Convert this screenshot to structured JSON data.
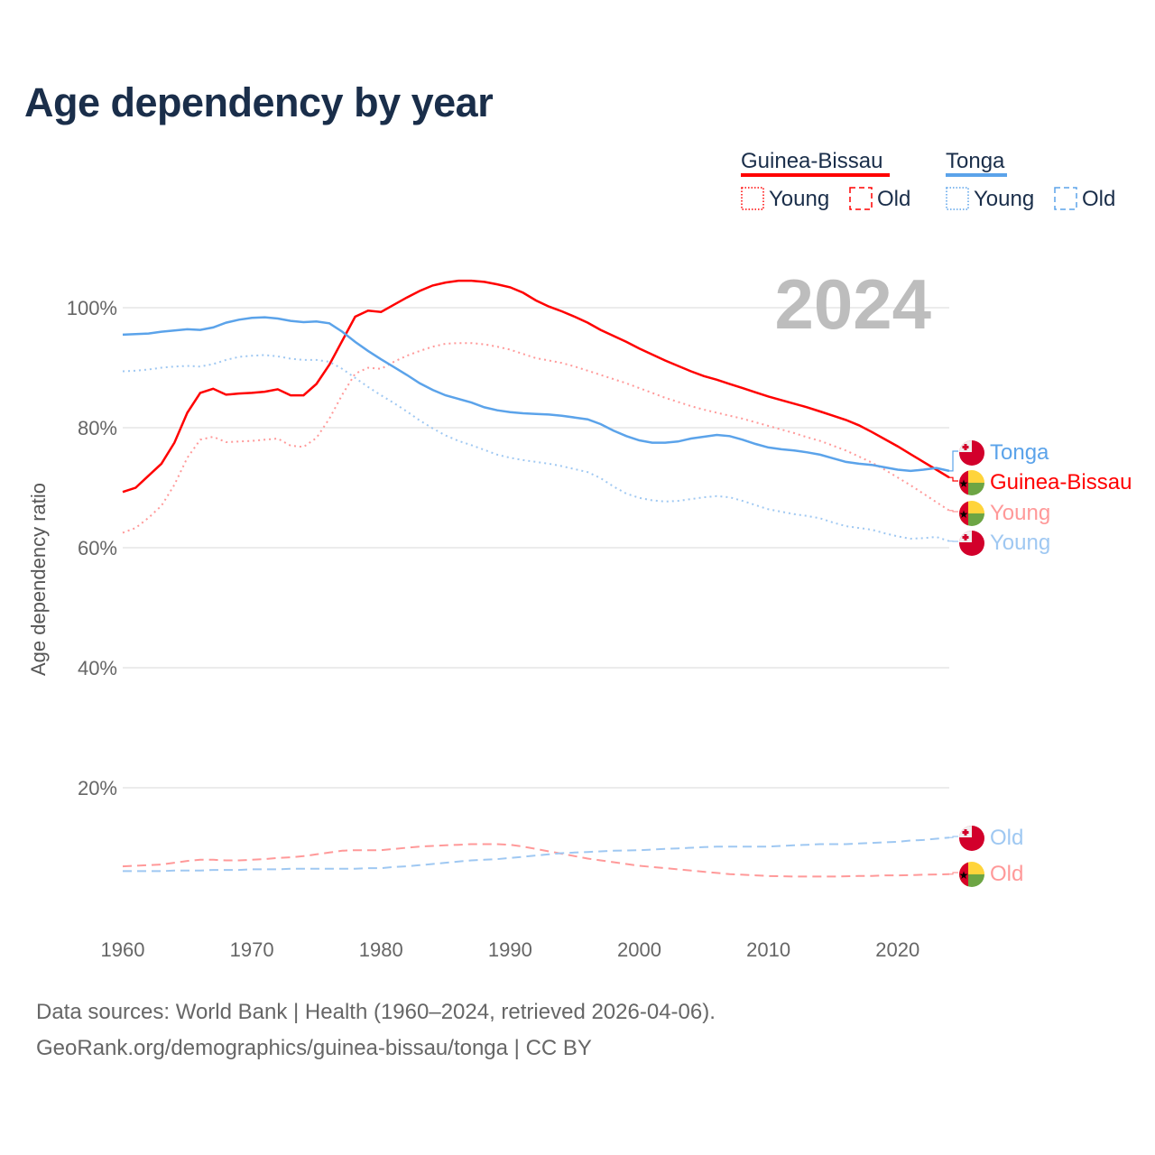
{
  "title": "Age dependency by year",
  "year_badge": "2024",
  "footer": {
    "line1": "Data sources: World Bank | Health (1960–2024, retrieved 2026-04-06).",
    "line2": "GeoRank.org/demographics/guinea-bissau/tonga | CC BY"
  },
  "legend": {
    "groups": [
      {
        "name": "Guinea-Bissau",
        "color": "#ff0000",
        "young": "Young",
        "old": "Old"
      },
      {
        "name": "Tonga",
        "color": "#5ba3ea",
        "young": "Young",
        "old": "Old"
      }
    ]
  },
  "end_labels": {
    "tonga_total": "Tonga",
    "gb_total": "Guinea-Bissau",
    "gb_young": "Young",
    "tonga_young": "Young",
    "tonga_old": "Old",
    "gb_old": "Old"
  },
  "chart_data": {
    "type": "line",
    "title": "Age dependency by year",
    "xlabel": "",
    "ylabel": "Age dependency ratio",
    "xlim": [
      1960,
      2024
    ],
    "ylim": [
      0,
      110
    ],
    "x_ticks": [
      "1960",
      "1970",
      "1980",
      "1990",
      "2000",
      "2010",
      "2020"
    ],
    "y_ticks": [
      "20%",
      "40%",
      "60%",
      "80%",
      "100%"
    ],
    "y_tick_values": [
      20,
      40,
      60,
      80,
      100
    ],
    "grid": true,
    "x_start": 1960,
    "series": [
      {
        "id": "gb_total",
        "name": "Guinea-Bissau",
        "style": "solid",
        "color": "#ff0000",
        "values": [
          69.3,
          70,
          72,
          74,
          77.5,
          82.5,
          85.8,
          86.5,
          85.5,
          85.7,
          85.8,
          86,
          86.4,
          85.4,
          85.4,
          87.3,
          90.5,
          94.5,
          98.5,
          99.5,
          99.3,
          100.5,
          101.7,
          102.8,
          103.7,
          104.2,
          104.5,
          104.5,
          104.3,
          103.9,
          103.4,
          102.5,
          101.2,
          100.2,
          99.4,
          98.5,
          97.5,
          96.3,
          95.3,
          94.3,
          93.2,
          92.2,
          91.2,
          90.3,
          89.4,
          88.6,
          88,
          87.3,
          86.6,
          85.9,
          85.2,
          84.6,
          84,
          83.4,
          82.7,
          82,
          81.3,
          80.4,
          79.3,
          78.1,
          76.9,
          75.6,
          74.3,
          73,
          71.7
        ]
      },
      {
        "id": "gb_young",
        "name": "Guinea-Bissau Young",
        "style": "dotted",
        "color": "#ff9999",
        "values": [
          62.5,
          63.3,
          65,
          67,
          70.5,
          75,
          78,
          78.5,
          77.6,
          77.7,
          77.8,
          78,
          78.2,
          77,
          76.8,
          78.3,
          81.5,
          85.5,
          89,
          90,
          89.8,
          91,
          92,
          92.8,
          93.5,
          94,
          94.1,
          94.1,
          93.9,
          93.5,
          93,
          92.3,
          91.6,
          91.2,
          90.8,
          90.2,
          89.5,
          88.8,
          88.1,
          87.4,
          86.6,
          85.8,
          85,
          84.3,
          83.6,
          83,
          82.5,
          82,
          81.5,
          80.9,
          80.3,
          79.7,
          79.1,
          78.4,
          77.8,
          77,
          76.2,
          75.2,
          74.2,
          73,
          71.7,
          70.4,
          69,
          67.6,
          66.2
        ]
      },
      {
        "id": "gb_old",
        "name": "Guinea-Bissau Old",
        "style": "dashed",
        "color": "#ff9999",
        "values": [
          6.9,
          7.0,
          7.1,
          7.2,
          7.5,
          7.8,
          8.0,
          8.0,
          7.9,
          7.9,
          8.0,
          8.1,
          8.3,
          8.4,
          8.6,
          8.9,
          9.2,
          9.5,
          9.6,
          9.6,
          9.6,
          9.8,
          10.0,
          10.2,
          10.3,
          10.4,
          10.5,
          10.6,
          10.6,
          10.6,
          10.5,
          10.2,
          9.8,
          9.4,
          9.0,
          8.6,
          8.2,
          7.9,
          7.6,
          7.3,
          7.0,
          6.8,
          6.6,
          6.4,
          6.2,
          6.0,
          5.8,
          5.6,
          5.5,
          5.4,
          5.3,
          5.25,
          5.2,
          5.2,
          5.2,
          5.2,
          5.25,
          5.3,
          5.3,
          5.4,
          5.4,
          5.45,
          5.5,
          5.55,
          5.6
        ]
      },
      {
        "id": "tonga_total",
        "name": "Tonga",
        "style": "solid",
        "color": "#5ba3ea",
        "values": [
          95.5,
          95.6,
          95.7,
          96,
          96.2,
          96.4,
          96.3,
          96.7,
          97.5,
          98,
          98.3,
          98.4,
          98.2,
          97.8,
          97.6,
          97.7,
          97.4,
          96,
          94.3,
          92.8,
          91.4,
          90.1,
          88.8,
          87.4,
          86.3,
          85.4,
          84.8,
          84.2,
          83.4,
          82.9,
          82.6,
          82.4,
          82.3,
          82.2,
          82,
          81.7,
          81.4,
          80.6,
          79.5,
          78.6,
          77.9,
          77.5,
          77.5,
          77.7,
          78.2,
          78.5,
          78.8,
          78.6,
          78,
          77.3,
          76.7,
          76.4,
          76.2,
          75.9,
          75.5,
          74.9,
          74.3,
          74,
          73.8,
          73.4,
          73,
          72.8,
          73,
          73.3,
          72.8
        ]
      },
      {
        "id": "tonga_young",
        "name": "Tonga Young",
        "style": "dotted",
        "color": "#9fc8f2",
        "values": [
          89.4,
          89.5,
          89.7,
          90,
          90.2,
          90.3,
          90.2,
          90.6,
          91.3,
          91.8,
          92,
          92.1,
          91.9,
          91.5,
          91.3,
          91.3,
          91,
          89.8,
          88.3,
          86.8,
          85.4,
          84.1,
          82.7,
          81.2,
          79.9,
          78.7,
          77.8,
          77.1,
          76.3,
          75.5,
          75,
          74.6,
          74.3,
          74,
          73.6,
          73.1,
          72.6,
          71.6,
          70.2,
          69,
          68.3,
          67.9,
          67.7,
          67.8,
          68.1,
          68.4,
          68.6,
          68.4,
          67.8,
          67.1,
          66.4,
          66,
          65.6,
          65.3,
          64.9,
          64.2,
          63.6,
          63.3,
          63,
          62.4,
          61.9,
          61.5,
          61.6,
          61.8,
          61.1
        ]
      },
      {
        "id": "tonga_old",
        "name": "Tonga Old",
        "style": "dashed",
        "color": "#9fc8f2",
        "values": [
          6.1,
          6.1,
          6.1,
          6.1,
          6.2,
          6.2,
          6.2,
          6.3,
          6.3,
          6.3,
          6.4,
          6.4,
          6.4,
          6.5,
          6.5,
          6.5,
          6.5,
          6.5,
          6.5,
          6.6,
          6.6,
          6.8,
          6.9,
          7.1,
          7.3,
          7.5,
          7.7,
          7.9,
          8.0,
          8.1,
          8.3,
          8.5,
          8.7,
          8.9,
          9.1,
          9.2,
          9.3,
          9.4,
          9.5,
          9.55,
          9.6,
          9.7,
          9.8,
          9.9,
          10.0,
          10.1,
          10.2,
          10.2,
          10.2,
          10.2,
          10.2,
          10.3,
          10.4,
          10.5,
          10.6,
          10.6,
          10.6,
          10.7,
          10.8,
          10.9,
          11.0,
          11.2,
          11.3,
          11.5,
          11.7
        ]
      }
    ]
  }
}
